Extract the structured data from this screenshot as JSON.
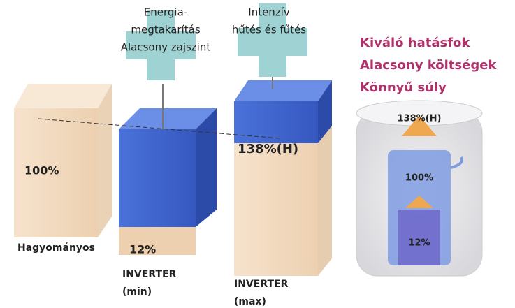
{
  "bars": [
    {
      "name": "Hagyományos",
      "value_label": "100%"
    },
    {
      "name_lines": [
        "INVERTER",
        "(min)"
      ],
      "value_label": "12%"
    },
    {
      "name_lines": [
        "INVERTER",
        "(max)"
      ],
      "value_label": "138%(H)"
    }
  ],
  "callouts": [
    {
      "lines": [
        "Energia-",
        "megtakarítás",
        "Alacsony zajszint"
      ]
    },
    {
      "lines": [
        "Intenzív",
        "hűtés és fűtés"
      ]
    }
  ],
  "headings": [
    "Kiváló hatásfok",
    "Alacsony költségek",
    "Könnyű súly"
  ],
  "cylinder_labels": [
    "138%(H)",
    "100%",
    "12%"
  ]
}
